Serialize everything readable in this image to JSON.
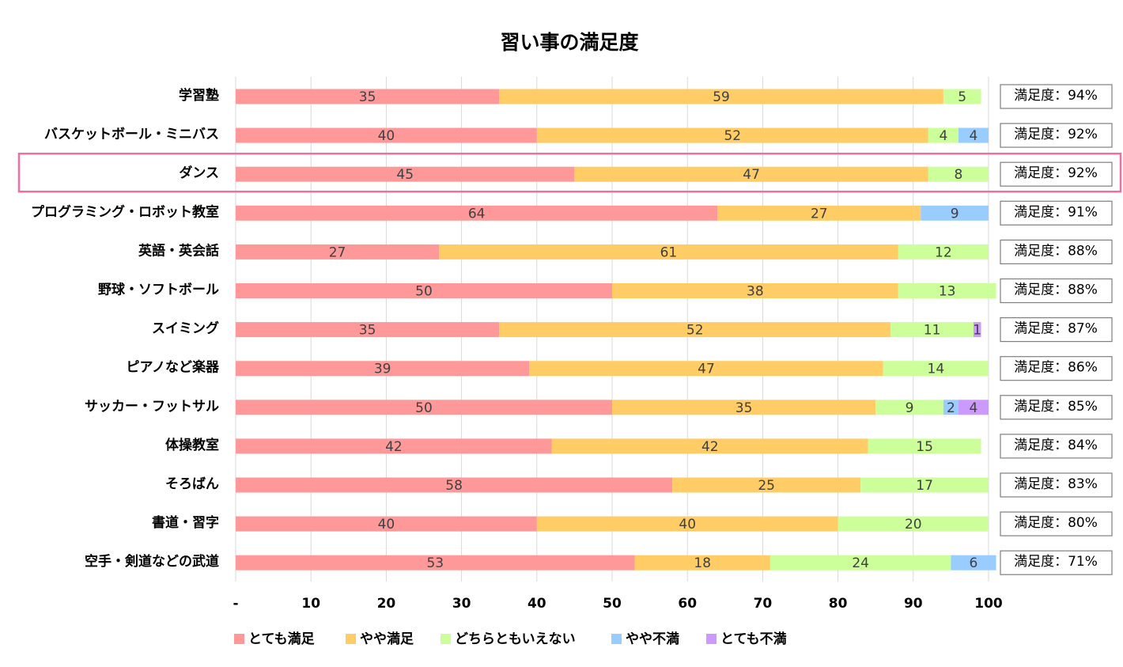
{
  "chart_data": {
    "type": "stacked-bar-horizontal",
    "title": "習い事の満足度",
    "xlim": [
      0,
      100
    ],
    "x_ticks": [
      "-",
      "10",
      "20",
      "30",
      "40",
      "50",
      "60",
      "70",
      "80",
      "90",
      "100"
    ],
    "grid": true,
    "highlighted_category": "ダンス",
    "legend_position": "bottom",
    "series": [
      {
        "name": "とても満足",
        "color": "#FF9999"
      },
      {
        "name": "やや満足",
        "color": "#FFCC66"
      },
      {
        "name": "どちらともいえない",
        "color": "#CCFF99"
      },
      {
        "name": "やや不満",
        "color": "#99CCFF"
      },
      {
        "name": "とても不満",
        "color": "#CC99FF"
      }
    ],
    "categories": [
      {
        "label": "学習塾",
        "values": [
          35,
          59,
          5,
          0,
          0
        ],
        "satisfaction": "満足度：94%"
      },
      {
        "label": "バスケットボール・ミニバス",
        "values": [
          40,
          52,
          4,
          4,
          0
        ],
        "satisfaction": "満足度：92%"
      },
      {
        "label": "ダンス",
        "values": [
          45,
          47,
          8,
          0,
          0
        ],
        "satisfaction": "満足度：92%"
      },
      {
        "label": "プログラミング・ロボット教室",
        "values": [
          64,
          27,
          0,
          9,
          0
        ],
        "satisfaction": "満足度：91%"
      },
      {
        "label": "英語・英会話",
        "values": [
          27,
          61,
          12,
          0,
          0
        ],
        "satisfaction": "満足度：88%"
      },
      {
        "label": "野球・ソフトボール",
        "values": [
          50,
          38,
          13,
          0,
          0
        ],
        "satisfaction": "満足度：88%"
      },
      {
        "label": "スイミング",
        "values": [
          35,
          52,
          11,
          0,
          1
        ],
        "satisfaction": "満足度：87%"
      },
      {
        "label": "ピアノなど楽器",
        "values": [
          39,
          47,
          14,
          0,
          0
        ],
        "satisfaction": "満足度：86%"
      },
      {
        "label": "サッカー・フットサル",
        "values": [
          50,
          35,
          9,
          2,
          4
        ],
        "satisfaction": "満足度：85%"
      },
      {
        "label": "体操教室",
        "values": [
          42,
          42,
          15,
          0,
          0
        ],
        "satisfaction": "満足度：84%"
      },
      {
        "label": "そろばん",
        "values": [
          58,
          25,
          17,
          0,
          0
        ],
        "satisfaction": "満足度：83%"
      },
      {
        "label": "書道・習字",
        "values": [
          40,
          40,
          20,
          0,
          0
        ],
        "satisfaction": "満足度：80%"
      },
      {
        "label": "空手・剣道などの武道",
        "values": [
          53,
          18,
          24,
          6,
          0
        ],
        "satisfaction": "満足度：71%"
      }
    ]
  }
}
